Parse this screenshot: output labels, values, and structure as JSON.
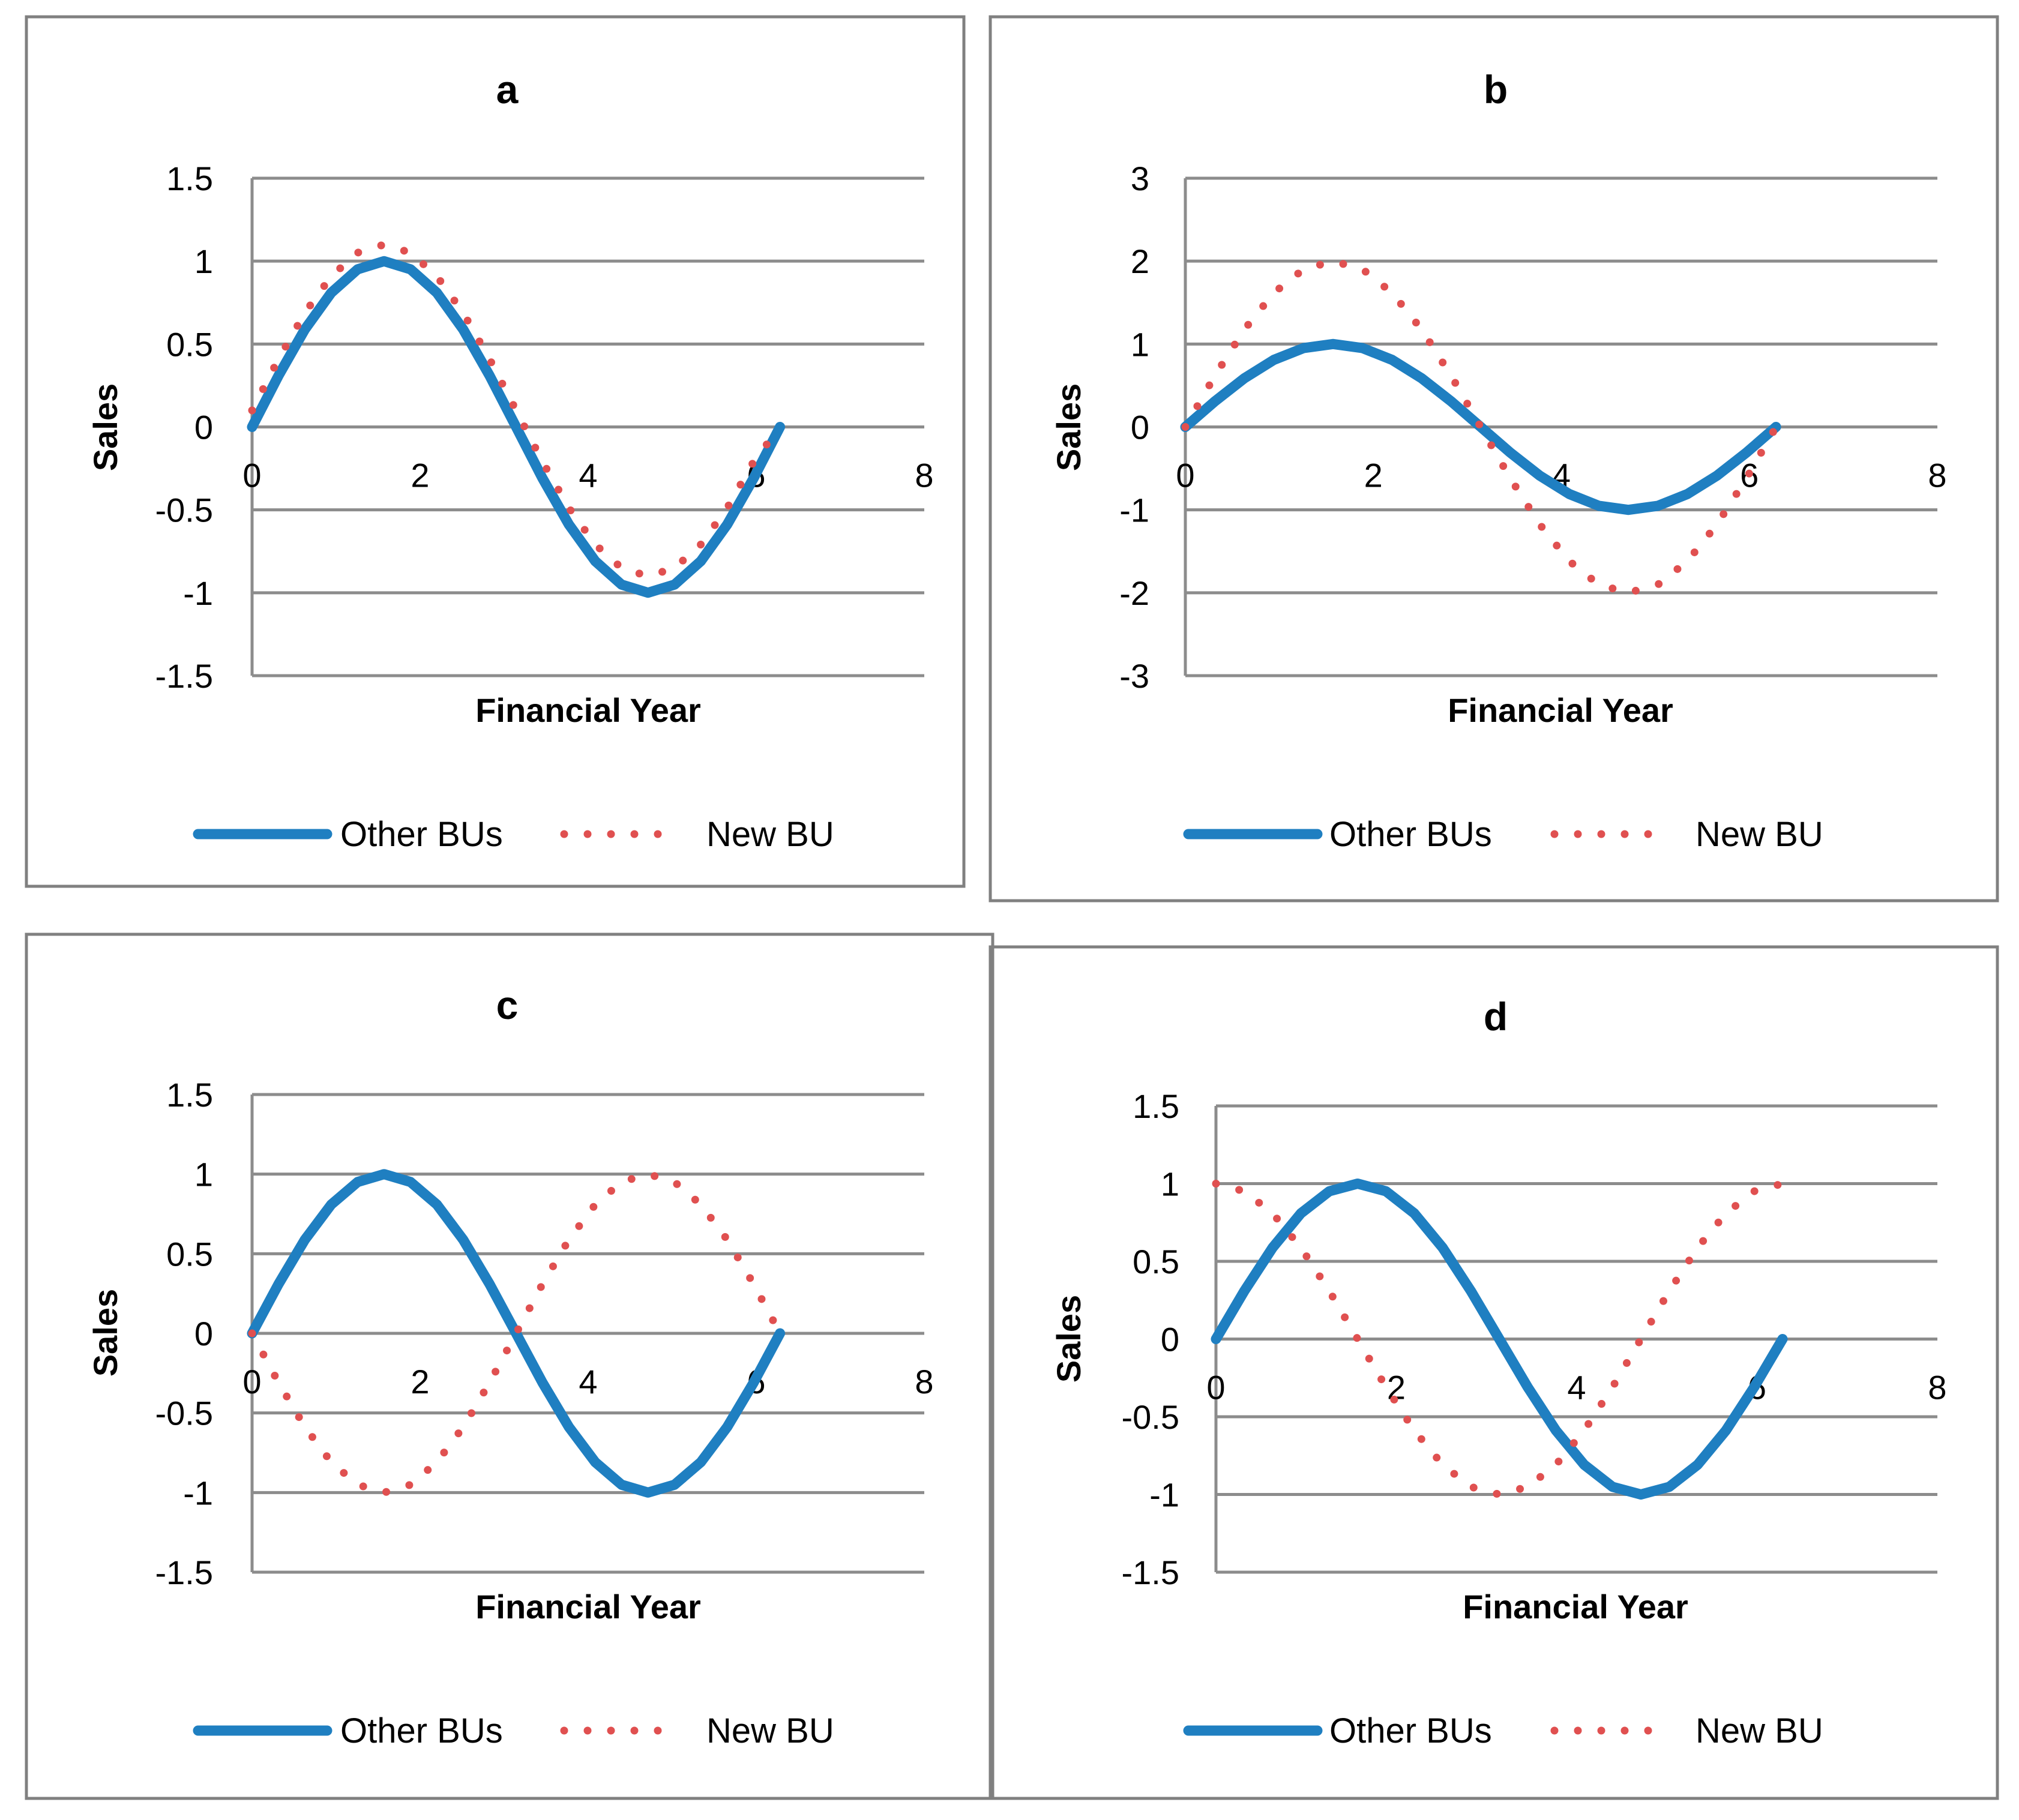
{
  "chart_data": [
    {
      "id": "a",
      "type": "line",
      "title": "a",
      "xlabel": "Financial Year",
      "ylabel": "Sales",
      "xlim": [
        0,
        8
      ],
      "ylim": [
        -1.5,
        1.5
      ],
      "x_ticks": [
        0,
        2,
        4,
        6,
        8
      ],
      "y_ticks": [
        -1.5,
        -1,
        -0.5,
        0,
        0.5,
        1,
        1.5
      ],
      "x_tick_labels": [
        "0",
        "2",
        "4",
        "6",
        "8"
      ],
      "y_tick_labels": [
        "-1.5",
        "-1",
        "-0.5",
        "0",
        "0.5",
        "1",
        "1.5"
      ],
      "grid": true,
      "legend_position": "bottom",
      "series": [
        {
          "name": "Other BUs",
          "style": "solid",
          "color": "#1f7fc1",
          "x": [
            0,
            0.314,
            0.628,
            0.942,
            1.257,
            1.571,
            1.885,
            2.199,
            2.513,
            2.827,
            3.142,
            3.456,
            3.77,
            4.084,
            4.398,
            4.712,
            5.027,
            5.341,
            5.655,
            5.969,
            6.283
          ],
          "values": [
            0,
            0.309,
            0.588,
            0.809,
            0.951,
            1,
            0.951,
            0.809,
            0.588,
            0.309,
            0,
            -0.309,
            -0.588,
            -0.809,
            -0.951,
            -1,
            -0.951,
            -0.809,
            -0.588,
            -0.309,
            0
          ]
        },
        {
          "name": "New BU",
          "style": "dotted",
          "color": "#e05050",
          "x": [
            0,
            0.314,
            0.628,
            0.942,
            1.257,
            1.571,
            1.885,
            2.199,
            2.513,
            2.827,
            3.142,
            3.456,
            3.77,
            4.084,
            4.398,
            4.712,
            5.027,
            5.341,
            5.655,
            5.969,
            6.283
          ],
          "values": [
            0.1,
            0.409,
            0.688,
            0.909,
            1.051,
            1.1,
            1.051,
            0.909,
            0.688,
            0.409,
            0.1,
            -0.209,
            -0.488,
            -0.709,
            -0.851,
            -0.9,
            -0.851,
            -0.709,
            -0.488,
            -0.209,
            0
          ]
        }
      ]
    },
    {
      "id": "b",
      "type": "line",
      "title": "b",
      "xlabel": "Financial Year",
      "ylabel": "Sales",
      "xlim": [
        0,
        8
      ],
      "ylim": [
        -3,
        3
      ],
      "x_ticks": [
        0,
        2,
        4,
        6,
        8
      ],
      "y_ticks": [
        -3,
        -2,
        -1,
        0,
        1,
        2,
        3
      ],
      "x_tick_labels": [
        "0",
        "2",
        "4",
        "6",
        "8"
      ],
      "y_tick_labels": [
        "-3",
        "-2",
        "-1",
        "0",
        "1",
        "2",
        "3"
      ],
      "grid": true,
      "legend_position": "bottom",
      "series": [
        {
          "name": "Other BUs",
          "style": "solid",
          "color": "#1f7fc1",
          "x": [
            0,
            0.314,
            0.628,
            0.942,
            1.257,
            1.571,
            1.885,
            2.199,
            2.513,
            2.827,
            3.142,
            3.456,
            3.77,
            4.084,
            4.398,
            4.712,
            5.027,
            5.341,
            5.655,
            5.969,
            6.283
          ],
          "values": [
            0,
            0.309,
            0.588,
            0.809,
            0.951,
            1,
            0.951,
            0.809,
            0.588,
            0.309,
            0,
            -0.309,
            -0.588,
            -0.809,
            -0.951,
            -1,
            -0.951,
            -0.809,
            -0.588,
            -0.309,
            0
          ]
        },
        {
          "name": "New BU",
          "style": "dotted",
          "color": "#e05050",
          "x": [
            0,
            0.314,
            0.628,
            0.942,
            1.257,
            1.571,
            1.885,
            2.199,
            2.513,
            2.827,
            3.142,
            3.456,
            3.77,
            4.084,
            4.398,
            4.712,
            5.027,
            5.341,
            5.655,
            5.969,
            6.283
          ],
          "values": [
            0,
            0.618,
            1.176,
            1.618,
            1.902,
            2,
            1.902,
            1.618,
            1.176,
            0.618,
            0,
            -0.618,
            -1.176,
            -1.618,
            -1.902,
            -2,
            -1.902,
            -1.618,
            -1.176,
            -0.618,
            0
          ]
        }
      ]
    },
    {
      "id": "c",
      "type": "line",
      "title": "c",
      "xlabel": "Financial Year",
      "ylabel": "Sales",
      "xlim": [
        0,
        8
      ],
      "ylim": [
        -1.5,
        1.5
      ],
      "x_ticks": [
        0,
        2,
        4,
        6,
        8
      ],
      "y_ticks": [
        -1.5,
        -1,
        -0.5,
        0,
        0.5,
        1,
        1.5
      ],
      "x_tick_labels": [
        "0",
        "2",
        "4",
        "6",
        "8"
      ],
      "y_tick_labels": [
        "-1.5",
        "-1",
        "-0.5",
        "0",
        "0.5",
        "1",
        "1.5"
      ],
      "grid": true,
      "legend_position": "bottom",
      "series": [
        {
          "name": "Other BUs",
          "style": "solid",
          "color": "#1f7fc1",
          "x": [
            0,
            0.314,
            0.628,
            0.942,
            1.257,
            1.571,
            1.885,
            2.199,
            2.513,
            2.827,
            3.142,
            3.456,
            3.77,
            4.084,
            4.398,
            4.712,
            5.027,
            5.341,
            5.655,
            5.969,
            6.283
          ],
          "values": [
            0,
            0.309,
            0.588,
            0.809,
            0.951,
            1,
            0.951,
            0.809,
            0.588,
            0.309,
            0,
            -0.309,
            -0.588,
            -0.809,
            -0.951,
            -1,
            -0.951,
            -0.809,
            -0.588,
            -0.309,
            0
          ]
        },
        {
          "name": "New BU",
          "style": "dotted",
          "color": "#e05050",
          "x": [
            0,
            0.314,
            0.628,
            0.942,
            1.257,
            1.571,
            1.885,
            2.199,
            2.513,
            2.827,
            3.142,
            3.456,
            3.77,
            4.084,
            4.398,
            4.712,
            5.027,
            5.341,
            5.655,
            5.969,
            6.283
          ],
          "values": [
            0,
            -0.309,
            -0.588,
            -0.809,
            -0.951,
            -1,
            -0.951,
            -0.809,
            -0.588,
            -0.309,
            0,
            0.309,
            0.588,
            0.809,
            0.951,
            1,
            0.951,
            0.809,
            0.588,
            0.309,
            0
          ]
        }
      ]
    },
    {
      "id": "d",
      "type": "line",
      "title": "d",
      "xlabel": "Financial Year",
      "ylabel": "Sales",
      "xlim": [
        0,
        8
      ],
      "ylim": [
        -1.5,
        1.5
      ],
      "x_ticks": [
        0,
        2,
        4,
        6,
        8
      ],
      "y_ticks": [
        -1.5,
        -1,
        -0.5,
        0,
        0.5,
        1,
        1.5
      ],
      "x_tick_labels": [
        "0",
        "2",
        "4",
        "6",
        "8"
      ],
      "y_tick_labels": [
        "-1.5",
        "-1",
        "-0.5",
        "0",
        "0.5",
        "1",
        "1.5"
      ],
      "grid": true,
      "legend_position": "bottom",
      "series": [
        {
          "name": "Other BUs",
          "style": "solid",
          "color": "#1f7fc1",
          "x": [
            0,
            0.314,
            0.628,
            0.942,
            1.257,
            1.571,
            1.885,
            2.199,
            2.513,
            2.827,
            3.142,
            3.456,
            3.77,
            4.084,
            4.398,
            4.712,
            5.027,
            5.341,
            5.655,
            5.969,
            6.283
          ],
          "values": [
            0,
            0.309,
            0.588,
            0.809,
            0.951,
            1,
            0.951,
            0.809,
            0.588,
            0.309,
            0,
            -0.309,
            -0.588,
            -0.809,
            -0.951,
            -1,
            -0.951,
            -0.809,
            -0.588,
            -0.309,
            0
          ]
        },
        {
          "name": "New BU",
          "style": "dotted",
          "color": "#e05050",
          "x": [
            0,
            0.314,
            0.628,
            0.942,
            1.257,
            1.571,
            1.885,
            2.199,
            2.513,
            2.827,
            3.142,
            3.456,
            3.77,
            4.084,
            4.398,
            4.712,
            5.027,
            5.341,
            5.655,
            5.969,
            6.283
          ],
          "values": [
            1,
            0.951,
            0.809,
            0.588,
            0.309,
            0,
            -0.309,
            -0.588,
            -0.809,
            -0.951,
            -1,
            -0.951,
            -0.809,
            -0.588,
            -0.309,
            0,
            0.309,
            0.588,
            0.809,
            0.951,
            1
          ]
        }
      ]
    }
  ]
}
